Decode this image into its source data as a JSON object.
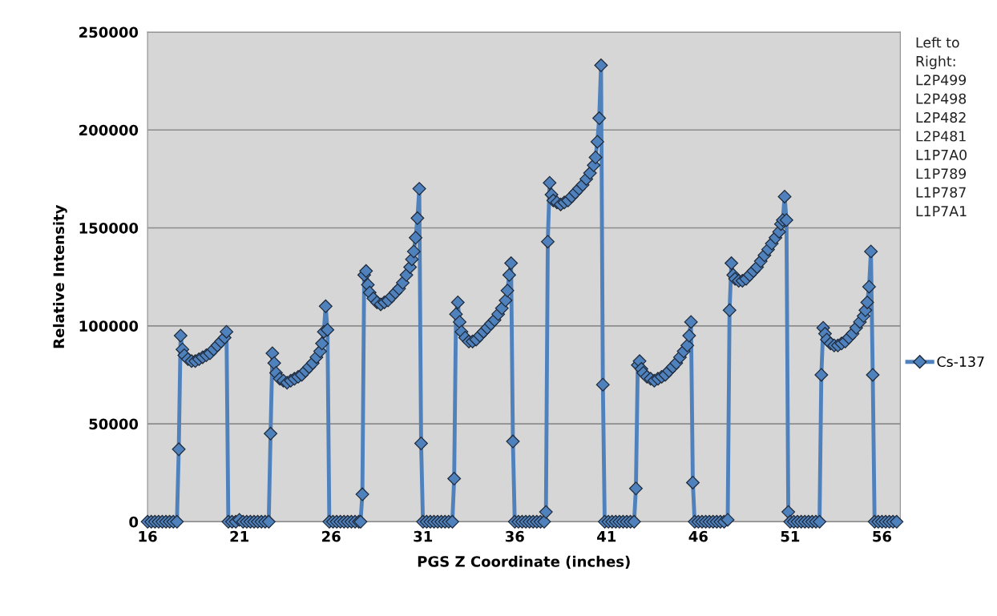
{
  "chart_data": {
    "type": "line",
    "xlabel": "PGS Z Coordinate (inches)",
    "ylabel": "Relative Intensity",
    "xlim": [
      16,
      57
    ],
    "xticks": [
      16,
      21,
      26,
      31,
      36,
      41,
      46,
      51,
      56
    ],
    "ylim": [
      0,
      250000
    ],
    "yticks": [
      0,
      50000,
      100000,
      150000,
      200000,
      250000
    ],
    "grid": "y",
    "legend": "right",
    "marker": "diamond",
    "line_style": "solid",
    "annotations": [
      "Left to\nRight:\nL2P499\nL2P498\nL2P482\nL2P481\nL1P7A0\nL1P789\nL1P787\nL1P7A1"
    ],
    "series": [
      {
        "name": "Cs-137",
        "color": "#4f81bd",
        "x": [
          16.0,
          16.2,
          16.4,
          16.6,
          16.8,
          17.0,
          17.2,
          17.4,
          17.6,
          17.7,
          17.8,
          17.9,
          18.0,
          18.2,
          18.4,
          18.6,
          18.8,
          19.0,
          19.2,
          19.4,
          19.6,
          19.8,
          20.0,
          20.2,
          20.3,
          20.4,
          20.6,
          20.8,
          21.0,
          21.2,
          21.4,
          21.6,
          21.8,
          22.0,
          22.2,
          22.4,
          22.6,
          22.7,
          22.8,
          22.9,
          23.0,
          23.2,
          23.4,
          23.6,
          23.8,
          24.0,
          24.2,
          24.4,
          24.6,
          24.8,
          25.0,
          25.2,
          25.4,
          25.5,
          25.6,
          25.7,
          25.8,
          25.9,
          26.1,
          26.3,
          26.5,
          26.7,
          26.9,
          27.1,
          27.3,
          27.5,
          27.6,
          27.7,
          27.8,
          27.9,
          28.0,
          28.1,
          28.3,
          28.5,
          28.7,
          28.9,
          29.1,
          29.3,
          29.5,
          29.7,
          29.9,
          30.1,
          30.3,
          30.4,
          30.5,
          30.6,
          30.7,
          30.8,
          30.9,
          31.0,
          31.2,
          31.4,
          31.6,
          31.8,
          32.0,
          32.2,
          32.4,
          32.6,
          32.7,
          32.8,
          32.9,
          33.0,
          33.1,
          33.3,
          33.5,
          33.7,
          33.9,
          34.1,
          34.3,
          34.5,
          34.7,
          34.9,
          35.1,
          35.3,
          35.5,
          35.6,
          35.7,
          35.8,
          35.9,
          36.0,
          36.2,
          36.4,
          36.6,
          36.8,
          37.0,
          37.2,
          37.4,
          37.6,
          37.7,
          37.8,
          37.9,
          38.0,
          38.1,
          38.3,
          38.5,
          38.7,
          38.9,
          39.1,
          39.3,
          39.5,
          39.7,
          39.9,
          40.1,
          40.3,
          40.4,
          40.5,
          40.6,
          40.7,
          40.8,
          40.9,
          41.1,
          41.3,
          41.5,
          41.7,
          41.9,
          42.1,
          42.3,
          42.5,
          42.6,
          42.7,
          42.8,
          42.9,
          43.0,
          43.2,
          43.4,
          43.6,
          43.8,
          44.0,
          44.2,
          44.4,
          44.6,
          44.8,
          45.0,
          45.2,
          45.4,
          45.5,
          45.6,
          45.7,
          45.8,
          46.0,
          46.2,
          46.4,
          46.6,
          46.8,
          47.0,
          47.2,
          47.4,
          47.6,
          47.7,
          47.8,
          47.9,
          48.0,
          48.2,
          48.4,
          48.6,
          48.8,
          49.0,
          49.2,
          49.4,
          49.6,
          49.8,
          50.0,
          50.2,
          50.4,
          50.5,
          50.6,
          50.7,
          50.8,
          50.9,
          51.0,
          51.2,
          51.4,
          51.6,
          51.8,
          52.0,
          52.2,
          52.4,
          52.6,
          52.7,
          52.8,
          52.9,
          53.0,
          53.2,
          53.4,
          53.6,
          53.8,
          54.0,
          54.2,
          54.4,
          54.6,
          54.8,
          55.0,
          55.1,
          55.2,
          55.3,
          55.4,
          55.5,
          55.6,
          55.8,
          56.0,
          56.2,
          56.4,
          56.6,
          56.8
        ],
        "values": [
          0,
          0,
          0,
          0,
          0,
          0,
          0,
          0,
          0,
          37000,
          95000,
          88000,
          85000,
          83000,
          82000,
          82000,
          83000,
          84000,
          85000,
          86000,
          88000,
          90000,
          92000,
          94000,
          97000,
          0,
          0,
          0,
          1000,
          0,
          0,
          0,
          0,
          0,
          0,
          0,
          0,
          45000,
          86000,
          81000,
          76000,
          73000,
          72000,
          71000,
          72000,
          73000,
          74000,
          75000,
          77000,
          79000,
          81000,
          84000,
          87000,
          91000,
          97000,
          110000,
          98000,
          0,
          0,
          0,
          0,
          0,
          0,
          0,
          0,
          0,
          0,
          14000,
          126000,
          128000,
          121000,
          117000,
          114000,
          112000,
          111000,
          112000,
          113000,
          115000,
          117000,
          119000,
          122000,
          126000,
          130000,
          134000,
          138000,
          145000,
          155000,
          170000,
          40000,
          0,
          0,
          0,
          0,
          0,
          0,
          0,
          0,
          0,
          22000,
          106000,
          112000,
          102000,
          97000,
          94000,
          92000,
          92000,
          93000,
          95000,
          97000,
          99000,
          101000,
          103000,
          106000,
          109000,
          113000,
          118000,
          126000,
          132000,
          41000,
          0,
          0,
          0,
          0,
          0,
          0,
          0,
          0,
          0,
          5000,
          143000,
          173000,
          167000,
          164000,
          163000,
          162000,
          163000,
          164000,
          166000,
          168000,
          170000,
          172000,
          175000,
          178000,
          182000,
          186000,
          194000,
          206000,
          233000,
          70000,
          0,
          0,
          0,
          0,
          0,
          0,
          0,
          0,
          0,
          17000,
          80000,
          82000,
          78000,
          76000,
          74000,
          73000,
          72000,
          73000,
          74000,
          75000,
          77000,
          79000,
          81000,
          84000,
          87000,
          90000,
          95000,
          102000,
          20000,
          0,
          0,
          0,
          0,
          0,
          0,
          0,
          0,
          0,
          1000,
          108000,
          132000,
          126000,
          124000,
          123000,
          123000,
          124000,
          126000,
          128000,
          130000,
          133000,
          136000,
          139000,
          142000,
          145000,
          148000,
          152000,
          154000,
          166000,
          154000,
          5000,
          0,
          0,
          0,
          0,
          0,
          0,
          0,
          0,
          0,
          75000,
          99000,
          96000,
          93000,
          91000,
          90000,
          90000,
          91000,
          92000,
          94000,
          96000,
          99000,
          102000,
          105000,
          108000,
          112000,
          120000,
          138000,
          75000,
          0,
          0,
          0,
          0,
          0,
          0,
          0
        ]
      }
    ]
  }
}
